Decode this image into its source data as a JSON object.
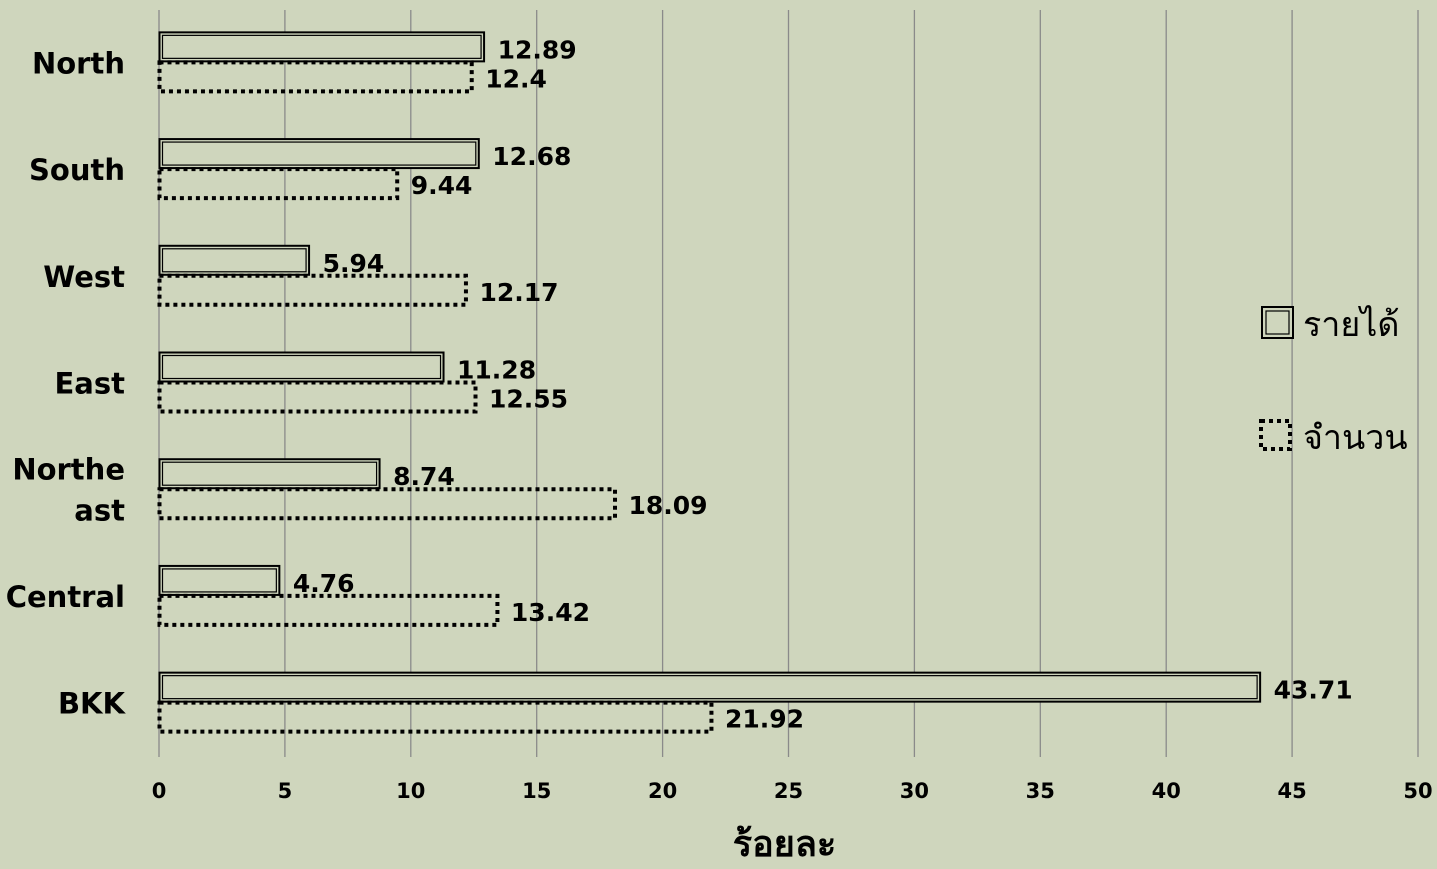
{
  "chart_data": {
    "type": "bar",
    "orientation": "horizontal",
    "categories": [
      "North",
      "South",
      "West",
      "East",
      "Northeast",
      "Central",
      "BKK"
    ],
    "category_display": [
      [
        "North"
      ],
      [
        "South"
      ],
      [
        "West"
      ],
      [
        "East"
      ],
      [
        "Northe",
        "ast"
      ],
      [
        "Central"
      ],
      [
        "BKK"
      ]
    ],
    "series": [
      {
        "name": "รายได้",
        "values": [
          12.89,
          12.68,
          5.94,
          11.28,
          8.74,
          4.76,
          43.71
        ],
        "style": "double-outline"
      },
      {
        "name": "จำนวน",
        "values": [
          12.4,
          9.44,
          12.17,
          12.55,
          18.09,
          13.42,
          21.92
        ],
        "style": "dotted-outline"
      }
    ],
    "data_labels": [
      [
        "12.89",
        "12.68",
        "5.94",
        "11.28",
        "8.74",
        "4.76",
        "43.71"
      ],
      [
        "12.4",
        "9.44",
        "12.17",
        "12.55",
        "18.09",
        "13.42",
        "21.92"
      ]
    ],
    "xlabel": "ร้อยละ",
    "ylabel": "",
    "xlim": [
      0,
      50
    ],
    "xticks": [
      "0",
      "5",
      "10",
      "15",
      "20",
      "25",
      "30",
      "35",
      "40",
      "45",
      "50"
    ],
    "grid": "vertical",
    "legend_position": "right",
    "colors": {
      "background": "#cfd6bd",
      "grid": "#8a8a8a",
      "bar_fill": "#cfd6bd",
      "outline": "#000000"
    }
  }
}
